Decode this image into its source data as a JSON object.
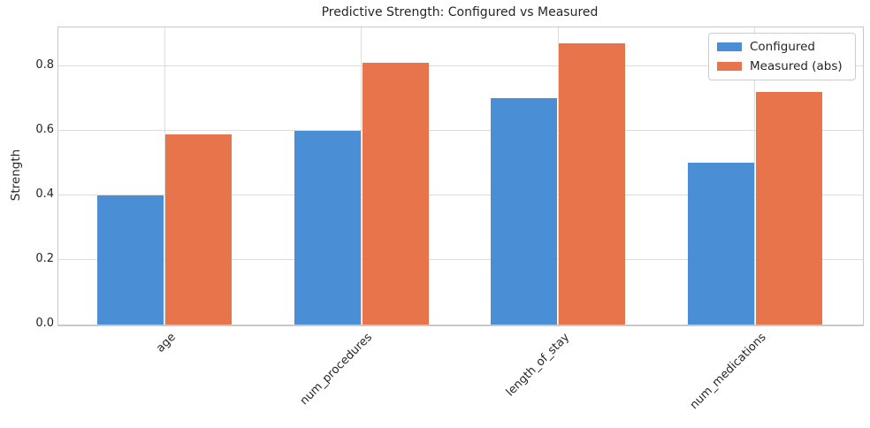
{
  "title": "Predictive Strength: Configured vs Measured",
  "chart_data": {
    "type": "bar",
    "title": "Predictive Strength: Configured vs Measured",
    "categories": [
      "age",
      "num_procedures",
      "length_of_stay",
      "num_medications"
    ],
    "series": [
      {
        "name": "Configured",
        "color": "#4a8fd5",
        "values": [
          0.4,
          0.6,
          0.7,
          0.5
        ]
      },
      {
        "name": "Measured (abs)",
        "color": "#e7744b",
        "values": [
          0.59,
          0.81,
          0.87,
          0.72
        ]
      }
    ],
    "xlabel": "",
    "ylabel": "Strength",
    "ylim": [
      0,
      0.92
    ],
    "yticks": [
      0.0,
      0.2,
      0.4,
      0.6,
      0.8
    ],
    "ytick_labels": [
      "0.0",
      "0.2",
      "0.4",
      "0.6",
      "0.8"
    ],
    "grid": true,
    "legend_position": "upper right",
    "x_tick_rotation": 45
  },
  "colors": {
    "configured": "#4a8fd5",
    "measured": "#e7744b",
    "grid": "#dcdcdc",
    "spine": "#c9c9c9",
    "text": "#262626"
  }
}
